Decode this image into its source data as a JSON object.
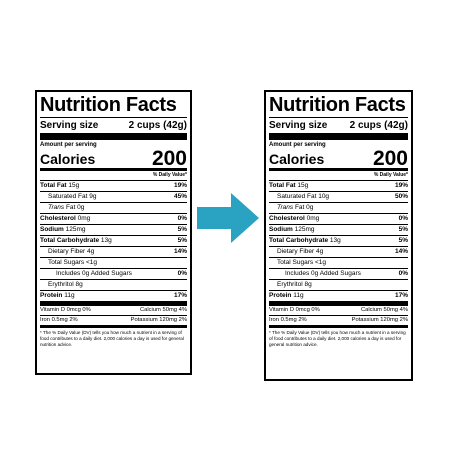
{
  "labels": [
    {
      "title": "Nutrition Facts",
      "serving_size_label": "Serving size",
      "serving_size_value": "2 cups (42g)",
      "amount_per_serving": "Amount per serving",
      "calories_label": "Calories",
      "calories_value": "200",
      "dv_header": "% Daily Value*",
      "rows": [
        {
          "name": "Total Fat",
          "amount": "15g",
          "dv": "19%"
        },
        {
          "name": "Saturated Fat",
          "amount": "9g",
          "dv": "45%"
        },
        {
          "name": "Trans",
          "name_suffix": "Fat",
          "amount": "0g",
          "dv": ""
        },
        {
          "name": "Cholesterol",
          "amount": "0mg",
          "dv": "0%"
        },
        {
          "name": "Sodium",
          "amount": "125mg",
          "dv": "5%"
        },
        {
          "name": "Total Carbohydrate",
          "amount": "13g",
          "dv": "5%"
        },
        {
          "name": "Dietary Fiber",
          "amount": "4g",
          "dv": "14%"
        },
        {
          "name": "Total Sugars",
          "amount": "<1g",
          "dv": ""
        },
        {
          "name": "Includes",
          "amount": "0g Added Sugars",
          "dv": "0%"
        },
        {
          "name": "Erythritol",
          "amount": "8g",
          "dv": ""
        },
        {
          "name": "Protein",
          "amount": "11g",
          "dv": "17%"
        }
      ],
      "vitamins": [
        {
          "left": "Vitamin D 0mcg 0%",
          "right": "Calcium 50mg 4%"
        },
        {
          "left": "Iron 0.5mg 2%",
          "right": "Potassium 120mg 2%"
        }
      ],
      "footnote": "* The % Daily Value (DV) tells you how much a nutrient in a serving of food contributes to a daily diet. 2,000 calories a day is used for general nutrition advice."
    },
    {
      "title": "Nutrition Facts",
      "serving_size_label": "Serving size",
      "serving_size_value": "2 cups (42g)",
      "amount_per_serving": "Amount per serving",
      "calories_label": "Calories",
      "calories_value": "200",
      "dv_header": "% Daily Value*",
      "rows": [
        {
          "name": "Total Fat",
          "amount": "15g",
          "dv": "19%"
        },
        {
          "name": "Saturated Fat",
          "amount": "10g",
          "dv": "50%"
        },
        {
          "name": "Trans",
          "name_suffix": "Fat",
          "amount": "0g",
          "dv": ""
        },
        {
          "name": "Cholesterol",
          "amount": "0mg",
          "dv": "0%"
        },
        {
          "name": "Sodium",
          "amount": "125mg",
          "dv": "5%"
        },
        {
          "name": "Total Carbohydrate",
          "amount": "13g",
          "dv": "5%"
        },
        {
          "name": "Dietary Fiber",
          "amount": "4g",
          "dv": "14%"
        },
        {
          "name": "Total Sugars",
          "amount": "<1g",
          "dv": ""
        },
        {
          "name": "Includes",
          "amount": "0g Added Sugars",
          "dv": "0%"
        },
        {
          "name": "Erythritol",
          "amount": "8g",
          "dv": ""
        },
        {
          "name": "Protein",
          "amount": "11g",
          "dv": "17%"
        }
      ],
      "vitamins": [
        {
          "left": "Vitamin D 0mcg 0%",
          "right": "Calcium 50mg 4%"
        },
        {
          "left": "Iron 0.5mg 2%",
          "right": "Potassium 120mg 2%"
        }
      ],
      "footnote": "* The % Daily Value (DV) tells you how much a nutrient in a serving of food contributes to a daily diet. 2,000 calories a day is used for general nutrition advice."
    }
  ],
  "arrow": {
    "icon": "arrow-right-icon",
    "color": "#2aa3c3"
  }
}
